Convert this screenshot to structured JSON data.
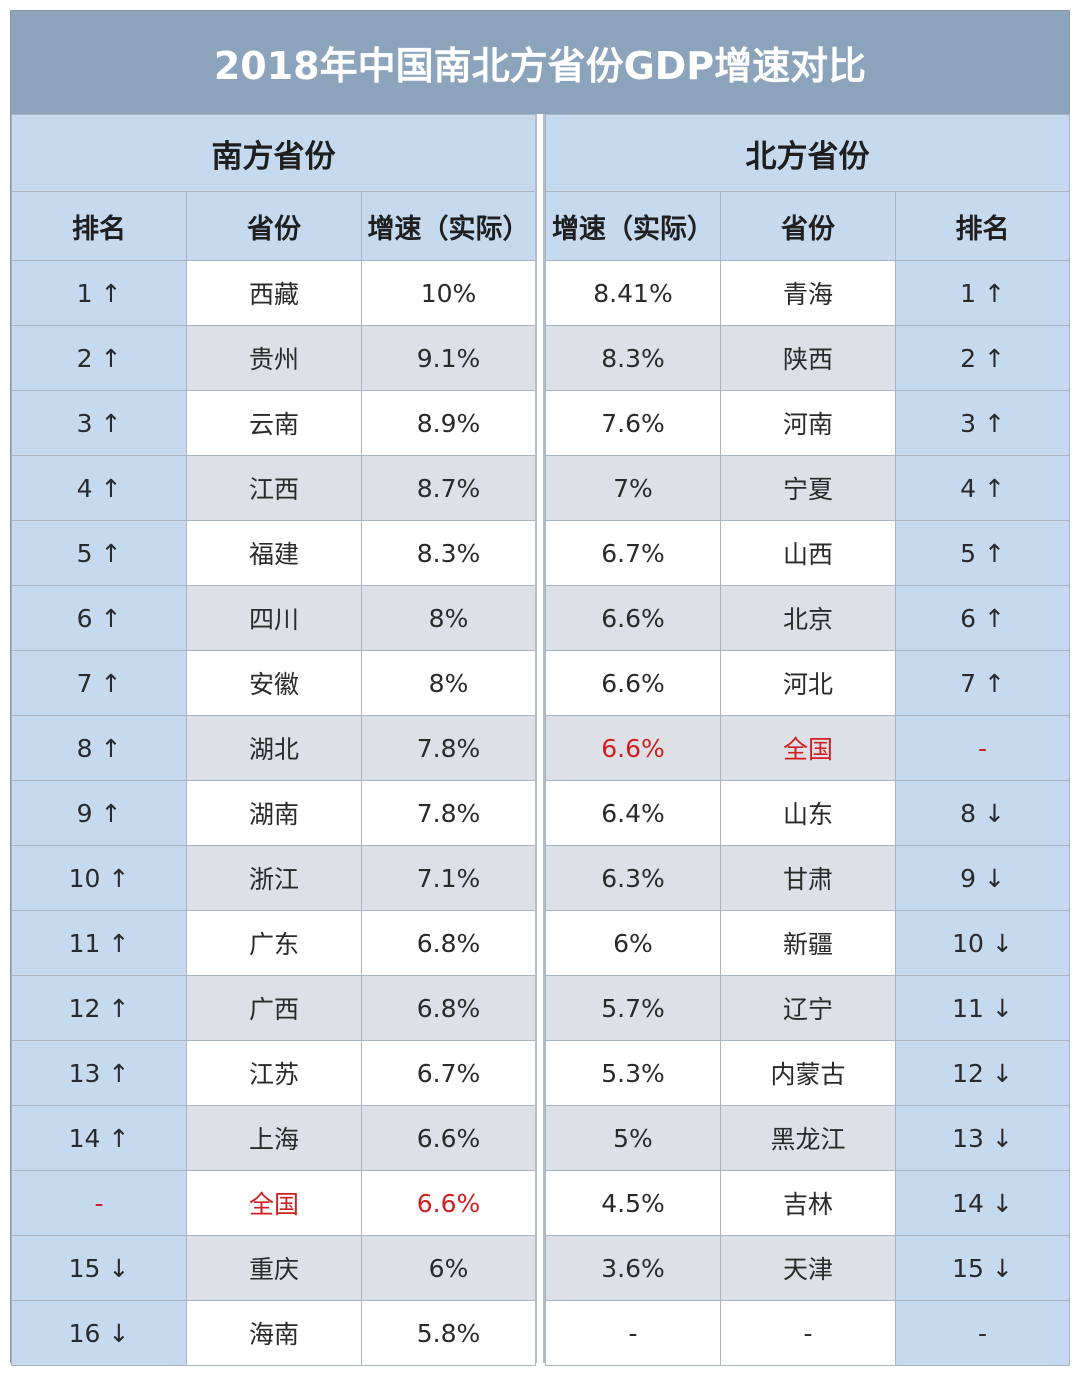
{
  "title": "2018年中国南北方省份GDP增速对比",
  "colors": {
    "header_bg": "#8ca3bc",
    "rank_bg": "#c5d9ef",
    "highlight": "#d01f1f"
  },
  "south": {
    "group": "南方省份",
    "headers": {
      "rank": "排名",
      "province": "省份",
      "growth": "增速（实际）"
    }
  },
  "north": {
    "group": "北方省份",
    "headers": {
      "growth": "增速（实际）",
      "province": "省份",
      "rank": "排名"
    }
  },
  "chart_data": {
    "type": "table",
    "title": "2018年中国南北方省份GDP增速对比",
    "south": [
      {
        "rank": "1 ↑",
        "province": "西藏",
        "growth": "10%"
      },
      {
        "rank": "2 ↑",
        "province": "贵州",
        "growth": "9.1%"
      },
      {
        "rank": "3 ↑",
        "province": "云南",
        "growth": "8.9%"
      },
      {
        "rank": "4 ↑",
        "province": "江西",
        "growth": "8.7%"
      },
      {
        "rank": "5 ↑",
        "province": "福建",
        "growth": "8.3%"
      },
      {
        "rank": "6 ↑",
        "province": "四川",
        "growth": "8%"
      },
      {
        "rank": "7 ↑",
        "province": "安徽",
        "growth": "8%"
      },
      {
        "rank": "8 ↑",
        "province": "湖北",
        "growth": "7.8%"
      },
      {
        "rank": "9 ↑",
        "province": "湖南",
        "growth": "7.8%"
      },
      {
        "rank": "10 ↑",
        "province": "浙江",
        "growth": "7.1%"
      },
      {
        "rank": "11 ↑",
        "province": "广东",
        "growth": "6.8%"
      },
      {
        "rank": "12 ↑",
        "province": "广西",
        "growth": "6.8%"
      },
      {
        "rank": "13 ↑",
        "province": "江苏",
        "growth": "6.7%"
      },
      {
        "rank": "14 ↑",
        "province": "上海",
        "growth": "6.6%"
      },
      {
        "rank": "-",
        "province": "全国",
        "growth": "6.6%",
        "highlight": true
      },
      {
        "rank": "15 ↓",
        "province": "重庆",
        "growth": "6%"
      },
      {
        "rank": "16 ↓",
        "province": "海南",
        "growth": "5.8%"
      }
    ],
    "north": [
      {
        "growth": "8.41%",
        "province": "青海",
        "rank": "1 ↑"
      },
      {
        "growth": "8.3%",
        "province": "陕西",
        "rank": "2 ↑"
      },
      {
        "growth": "7.6%",
        "province": "河南",
        "rank": "3 ↑"
      },
      {
        "growth": "7%",
        "province": "宁夏",
        "rank": "4 ↑"
      },
      {
        "growth": "6.7%",
        "province": "山西",
        "rank": "5 ↑"
      },
      {
        "growth": "6.6%",
        "province": "北京",
        "rank": "6 ↑"
      },
      {
        "growth": "6.6%",
        "province": "河北",
        "rank": "7 ↑"
      },
      {
        "growth": "6.6%",
        "province": "全国",
        "rank": "-",
        "highlight": true
      },
      {
        "growth": "6.4%",
        "province": "山东",
        "rank": "8 ↓"
      },
      {
        "growth": "6.3%",
        "province": "甘肃",
        "rank": "9 ↓"
      },
      {
        "growth": "6%",
        "province": "新疆",
        "rank": "10 ↓"
      },
      {
        "growth": "5.7%",
        "province": "辽宁",
        "rank": "11 ↓"
      },
      {
        "growth": "5.3%",
        "province": "内蒙古",
        "rank": "12 ↓"
      },
      {
        "growth": "5%",
        "province": "黑龙江",
        "rank": "13 ↓"
      },
      {
        "growth": "4.5%",
        "province": "吉林",
        "rank": "14 ↓"
      },
      {
        "growth": "3.6%",
        "province": "天津",
        "rank": "15 ↓"
      },
      {
        "growth": "-",
        "province": "-",
        "rank": "-"
      }
    ]
  }
}
